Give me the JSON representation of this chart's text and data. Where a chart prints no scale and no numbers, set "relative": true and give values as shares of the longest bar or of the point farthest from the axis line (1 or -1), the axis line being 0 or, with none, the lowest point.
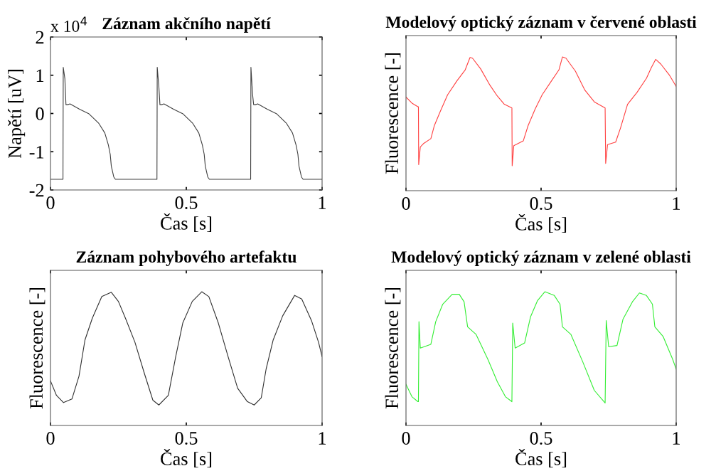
{
  "chart_data": [
    {
      "type": "line",
      "title": "Záznam akčního napětí",
      "xlabel": "Čas [s]",
      "ylabel": "Napětí [uV]",
      "annotations": [
        "x 10$^{4}$"
      ],
      "xlim": [
        0,
        1
      ],
      "xticks": [
        0,
        0.5,
        1
      ],
      "ylim": [
        -2,
        2
      ],
      "yticks": [
        -2,
        -1,
        0,
        1,
        2
      ],
      "series": [
        {
          "color": "#404040",
          "x": [
            0,
            0.046,
            0.047,
            0.053,
            0.057,
            0.063,
            0.072,
            0.107,
            0.142,
            0.178,
            0.2,
            0.213,
            0.22,
            0.224,
            0.233,
            0.239,
            0.392,
            0.393,
            0.399,
            0.403,
            0.409,
            0.418,
            0.453,
            0.488,
            0.524,
            0.546,
            0.559,
            0.566,
            0.57,
            0.579,
            0.585,
            0.737,
            0.738,
            0.744,
            0.748,
            0.754,
            0.763,
            0.798,
            0.833,
            0.869,
            0.891,
            0.904,
            0.911,
            0.915,
            0.924,
            0.93,
            1.0
          ],
          "values": [
            -1.72,
            -1.72,
            1.21,
            0.91,
            0.23,
            0.23,
            0.25,
            0.11,
            -0.01,
            -0.26,
            -0.51,
            -0.82,
            -1.07,
            -1.38,
            -1.66,
            -1.72,
            -1.72,
            1.21,
            0.7,
            0.23,
            0.23,
            0.25,
            0.11,
            -0.01,
            -0.26,
            -0.51,
            -0.82,
            -1.07,
            -1.38,
            -1.66,
            -1.72,
            -1.72,
            1.21,
            0.5,
            0.23,
            0.23,
            0.25,
            0.11,
            -0.01,
            -0.26,
            -0.51,
            -0.82,
            -1.07,
            -1.38,
            -1.66,
            -1.72,
            -1.72
          ]
        }
      ]
    },
    {
      "type": "line",
      "title": "Modelový optický záznam v červené oblasti",
      "xlabel": "Čas [s]",
      "ylabel": "Fluorescence [-]",
      "relative": true,
      "tick_labels": "x",
      "xlim": [
        0,
        1
      ],
      "xticks": [
        0,
        0.5,
        1
      ],
      "series": [
        {
          "color": "#ff4040",
          "x": [
            0,
            0.022,
            0.044,
            0.046,
            0.047,
            0.053,
            0.066,
            0.092,
            0.105,
            0.127,
            0.154,
            0.189,
            0.219,
            0.237,
            0.246,
            0.276,
            0.311,
            0.338,
            0.364,
            0.392,
            0.393,
            0.399,
            0.434,
            0.452,
            0.478,
            0.504,
            0.539,
            0.566,
            0.579,
            0.592,
            0.627,
            0.662,
            0.697,
            0.737,
            0.739,
            0.746,
            0.776,
            0.794,
            0.82,
            0.855,
            0.89,
            0.908,
            0.924,
            0.943,
            0.974,
            1.0
          ],
          "values": [
            0.7,
            0.655,
            0.628,
            0.628,
            0.195,
            0.327,
            0.354,
            0.389,
            0.487,
            0.593,
            0.717,
            0.823,
            0.903,
            0.996,
            0.991,
            0.912,
            0.788,
            0.708,
            0.646,
            0.619,
            0.186,
            0.336,
            0.372,
            0.487,
            0.611,
            0.717,
            0.823,
            0.903,
            1.0,
            0.991,
            0.894,
            0.752,
            0.664,
            0.619,
            0.204,
            0.345,
            0.363,
            0.469,
            0.646,
            0.735,
            0.841,
            0.92,
            0.982,
            0.947,
            0.867,
            0.779
          ]
        }
      ]
    },
    {
      "type": "line",
      "title": "Záznam pohybového artefaktu",
      "xlabel": "Čas [s]",
      "ylabel": "Fluorescence [-]",
      "relative": true,
      "tick_labels": "x",
      "xlim": [
        0,
        1
      ],
      "xticks": [
        0,
        0.5,
        1
      ],
      "series": [
        {
          "color": "#303030",
          "x": [
            0,
            0.022,
            0.048,
            0.079,
            0.105,
            0.127,
            0.154,
            0.189,
            0.224,
            0.25,
            0.276,
            0.311,
            0.346,
            0.377,
            0.399,
            0.434,
            0.461,
            0.487,
            0.522,
            0.557,
            0.583,
            0.618,
            0.654,
            0.689,
            0.724,
            0.75,
            0.776,
            0.794,
            0.82,
            0.855,
            0.899,
            0.925,
            0.961,
            0.987,
            1.0
          ],
          "values": [
            0.333,
            0.225,
            0.171,
            0.198,
            0.369,
            0.64,
            0.802,
            0.964,
            0.996,
            0.928,
            0.802,
            0.622,
            0.387,
            0.189,
            0.153,
            0.225,
            0.514,
            0.766,
            0.928,
            1.0,
            0.964,
            0.766,
            0.514,
            0.279,
            0.18,
            0.153,
            0.207,
            0.423,
            0.64,
            0.82,
            0.973,
            0.946,
            0.784,
            0.622,
            0.514
          ]
        }
      ]
    },
    {
      "type": "line",
      "title": "Modelový optický záznam v zelené oblasti",
      "xlabel": "Čas [s]",
      "ylabel": "Fluorescence [-]",
      "relative": true,
      "tick_labels": "x",
      "xlim": [
        0,
        1
      ],
      "xticks": [
        0,
        0.5,
        1
      ],
      "series": [
        {
          "color": "#33ee33",
          "x": [
            0,
            0.022,
            0.044,
            0.046,
            0.048,
            0.053,
            0.092,
            0.11,
            0.136,
            0.171,
            0.197,
            0.215,
            0.228,
            0.259,
            0.303,
            0.338,
            0.368,
            0.392,
            0.395,
            0.404,
            0.439,
            0.461,
            0.487,
            0.514,
            0.549,
            0.57,
            0.579,
            0.61,
            0.654,
            0.697,
            0.737,
            0.741,
            0.75,
            0.781,
            0.803,
            0.838,
            0.864,
            0.89,
            0.912,
            0.921,
            0.952,
            0.987,
            1.0
          ],
          "values": [
            0.308,
            0.215,
            0.178,
            0.178,
            0.776,
            0.579,
            0.607,
            0.776,
            0.907,
            0.981,
            0.981,
            0.925,
            0.738,
            0.682,
            0.495,
            0.327,
            0.215,
            0.178,
            0.766,
            0.579,
            0.617,
            0.813,
            0.935,
            1.0,
            0.972,
            0.907,
            0.738,
            0.682,
            0.477,
            0.262,
            0.168,
            0.785,
            0.589,
            0.598,
            0.794,
            0.925,
            0.991,
            0.972,
            0.907,
            0.738,
            0.664,
            0.495,
            0.421
          ]
        }
      ]
    }
  ]
}
